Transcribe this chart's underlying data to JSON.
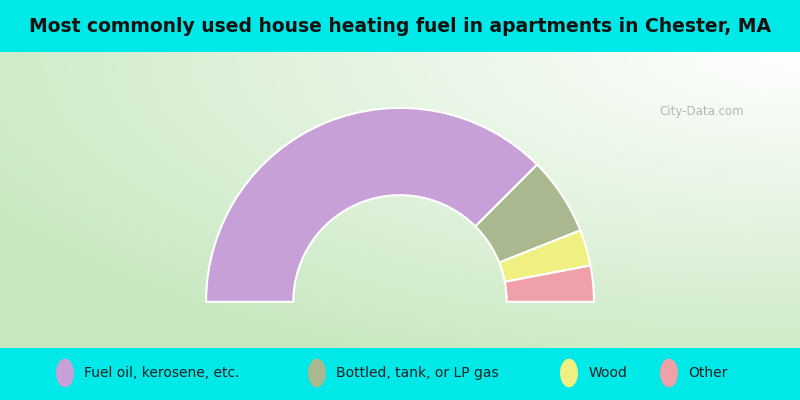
{
  "title": "Most commonly used house heating fuel in apartments in Chester, MA",
  "title_fontsize": 13.5,
  "segments": [
    {
      "label": "Fuel oil, kerosene, etc.",
      "value": 75,
      "color": "#c8a0d8"
    },
    {
      "label": "Bottled, tank, or LP gas",
      "value": 13,
      "color": "#aab890"
    },
    {
      "label": "Wood",
      "value": 6,
      "color": "#f0f080"
    },
    {
      "label": "Other",
      "value": 6,
      "color": "#f0a0a8"
    }
  ],
  "bg_cyan": "#00e8e8",
  "bg_chart": "#c8e8c0",
  "watermark": "City-Data.com",
  "outer_r": 1.0,
  "inner_r": 0.55,
  "legend_fontsize": 10
}
